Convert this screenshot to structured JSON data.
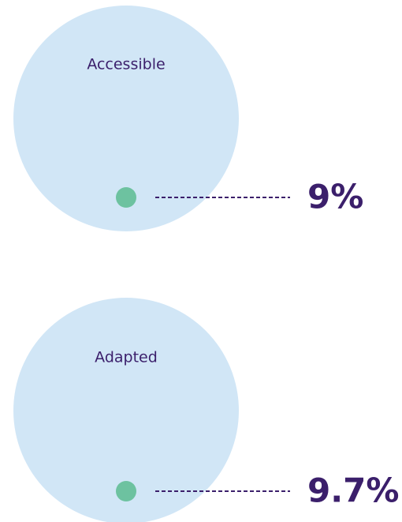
{
  "chart_data": {
    "type": "proportion",
    "categories": [
      "Accessible",
      "Adapted"
    ],
    "values": [
      9,
      9.7
    ],
    "value_labels": [
      "9%",
      "9.7%"
    ],
    "circle_color": "#d1e6f6",
    "color": "#6dc2a0"
  }
}
